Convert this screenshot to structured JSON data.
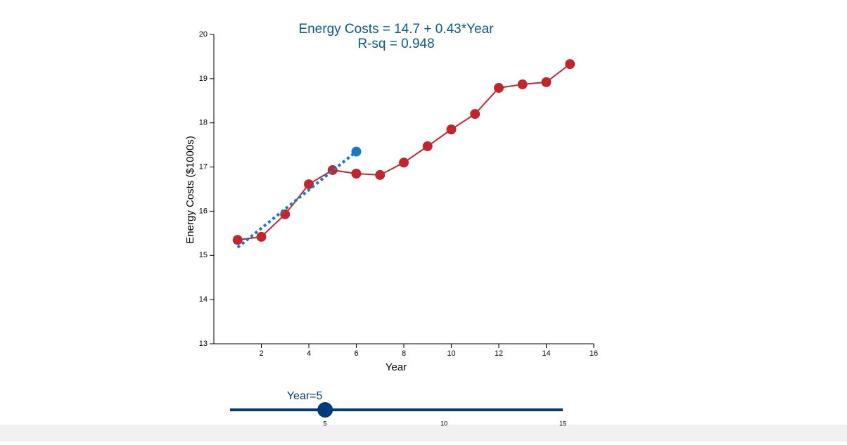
{
  "chart_data": {
    "type": "line",
    "title": "Energy Costs = 14.7 + 0.43*Year",
    "subtitle": "R-sq = 0.948",
    "x_label": "Year",
    "y_label": "Energy Costs ($1000s)",
    "x": [
      1,
      2,
      3,
      4,
      5,
      6,
      7,
      8,
      9,
      10,
      11,
      12,
      13,
      14,
      15
    ],
    "series": [
      {
        "color": "#c0272d",
        "values": [
          15.35,
          15.42,
          15.93,
          16.61,
          16.93,
          16.85,
          16.82,
          17.1,
          17.47,
          17.85,
          18.2,
          18.79,
          18.87,
          18.92,
          19.33
        ]
      }
    ],
    "fit": {
      "color": "#1a7abf",
      "x": [
        1,
        6
      ],
      "values": [
        15.18,
        17.35
      ]
    },
    "prediction": {
      "color": "#1a7abf",
      "x": 6,
      "value": 17.35
    },
    "xlim": [
      0,
      16
    ],
    "xticks": [
      2,
      4,
      6,
      8,
      10,
      12,
      14,
      16
    ],
    "ylim": [
      13,
      20
    ],
    "yticks": [
      13,
      14,
      15,
      16,
      17,
      18,
      19,
      20
    ]
  },
  "slider": {
    "label": "Year=5",
    "value": 5,
    "min": 1,
    "max": 15,
    "ticks": [
      5,
      10,
      15
    ],
    "color": "#003a7a"
  }
}
